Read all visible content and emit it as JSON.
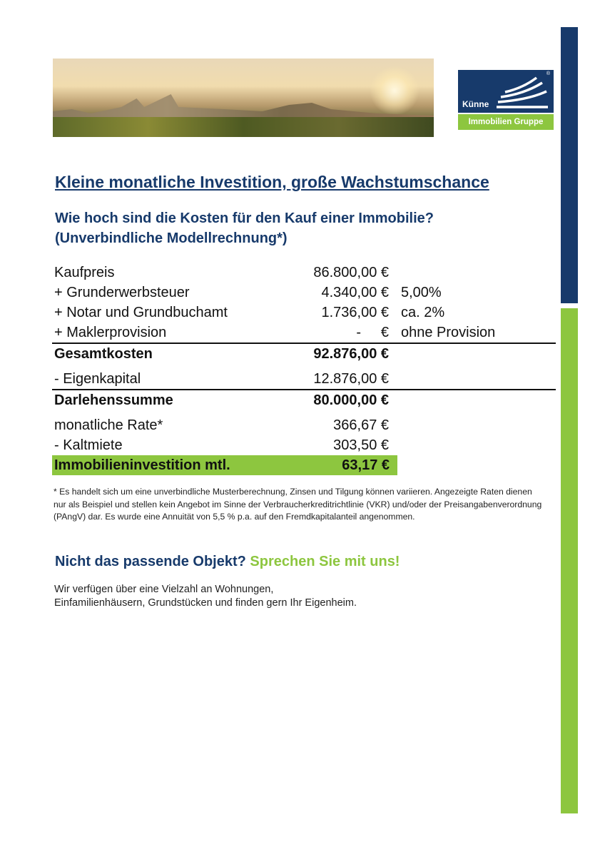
{
  "brand": {
    "name": "Künne",
    "subtitle": "Immobilien Gruppe",
    "registered": "®",
    "colors": {
      "navy": "#173a6b",
      "green": "#8dc63f"
    }
  },
  "title": "Kleine monatliche Investition, große Wachstumschance",
  "subtitle_lines": [
    "Wie hoch sind die Kosten für den Kauf einer Immobilie?",
    "(Unverbindliche Modellrechnung*)"
  ],
  "rows": [
    {
      "label": "Kaufpreis",
      "value": "86.800,00 €",
      "note": ""
    },
    {
      "label": "+ Grunderwerbsteuer",
      "value": "4.340,00 €",
      "note": "5,00%"
    },
    {
      "label": "+ Notar und Grundbuchamt",
      "value": "1.736,00 €",
      "note": "ca. 2%"
    },
    {
      "label": "+ Maklerprovision",
      "value": "-     €",
      "note": "ohne Provision"
    },
    {
      "label": "Gesamtkosten",
      "value": "92.876,00 €",
      "note": ""
    },
    {
      "label": "- Eigenkapital",
      "value": "12.876,00 €",
      "note": ""
    },
    {
      "label": "Darlehenssumme",
      "value": "80.000,00 €",
      "note": ""
    },
    {
      "label": "monatliche Rate*",
      "value": "366,67 €",
      "note": ""
    },
    {
      "label": "- Kaltmiete",
      "value": "303,50 €",
      "note": ""
    },
    {
      "label": "Immobilieninvestition mtl.",
      "value": "63,17 €",
      "note": ""
    }
  ],
  "footnote": "* Es handelt sich um eine unverbindliche Musterberechnung, Zinsen und Tilgung können variieren. Angezeigte Raten dienen nur als Beispiel und stellen kein Angebot im Sinne der Verbraucherkreditrichtlinie (VKR) und/oder der Preisangabenverordnung (PAngV) dar. Es wurde eine Annuität von 5,5 % p.a. auf den Fremdkapitalanteil angenommen.",
  "cta": {
    "question": "Nicht das passende Objekt?",
    "action": "Sprechen Sie mit uns!"
  },
  "body_lines": [
    "Wir verfügen über eine Vielzahl an Wohnungen,",
    "Einfamilienhäusern, Grundstücken und finden gern Ihr Eigenheim."
  ]
}
